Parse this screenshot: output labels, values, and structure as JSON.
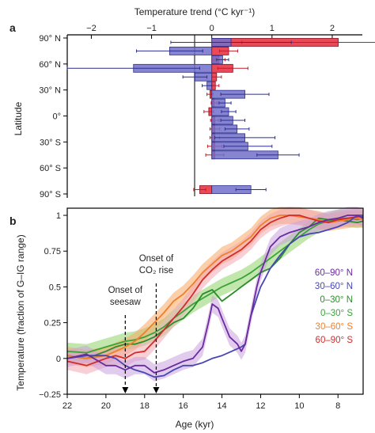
{
  "chart_data": [
    {
      "panel_label": "a",
      "type": "bar",
      "orientation": "horizontal",
      "title": "Temperature trend (°C kyr⁻¹)",
      "xlabel": "Temperature trend (°C kyr⁻¹)",
      "ylabel": "Latitude",
      "xlim": [
        -2.4,
        2.5
      ],
      "xticks": [
        -2,
        -1,
        0,
        1,
        2
      ],
      "xtick_labels": [
        "−2",
        "−1",
        "0",
        "1",
        "2"
      ],
      "ylim": [
        -90,
        90
      ],
      "ytick_labels": [
        "90° N",
        "60° N",
        "30° N",
        "0°",
        "30° S",
        "60° S",
        "90° S"
      ],
      "series": [
        {
          "color": "#e8394a",
          "rows": [
            {
              "lat": 85,
              "value": 2.1,
              "err": 1.6
            },
            {
              "lat": 75,
              "value": 0.28,
              "err": 0.15
            },
            {
              "lat": 65,
              "value": 0.12,
              "err": 0.1
            },
            {
              "lat": 55,
              "value": 0.35,
              "err": 0.25
            },
            {
              "lat": 45,
              "value": 0.08,
              "err": 0.08
            },
            {
              "lat": 35,
              "value": 0.06,
              "err": 0.06
            },
            {
              "lat": 25,
              "value": -0.03,
              "err": 0.05
            },
            {
              "lat": 15,
              "value": 0.04,
              "err": 0.05
            },
            {
              "lat": 5,
              "value": -0.05,
              "err": 0.08
            },
            {
              "lat": -5,
              "value": 0.05,
              "err": 0.07
            },
            {
              "lat": -15,
              "value": 0.05,
              "err": 0.08
            },
            {
              "lat": -25,
              "value": 0.05,
              "err": 0.08
            },
            {
              "lat": -35,
              "value": 0.05,
              "err": 0.12
            },
            {
              "lat": -45,
              "value": 0.05,
              "err": 0.15
            },
            {
              "lat": -85,
              "value": -0.2,
              "err": 0.1
            }
          ]
        },
        {
          "color": "#7270c9",
          "rows": [
            {
              "lat": 85,
              "value": 0.32,
              "err": 1.0
            },
            {
              "lat": 75,
              "value": -0.7,
              "err": 0.55
            },
            {
              "lat": 65,
              "value": 0.18,
              "err": 0.1
            },
            {
              "lat": 55,
              "value": -1.3,
              "err": 1.1
            },
            {
              "lat": 45,
              "value": -0.28,
              "err": 0.2
            },
            {
              "lat": 35,
              "value": -0.08,
              "err": 0.08
            },
            {
              "lat": 25,
              "value": 0.55,
              "err": 0.4
            },
            {
              "lat": 15,
              "value": 0.22,
              "err": 0.1
            },
            {
              "lat": 5,
              "value": 0.28,
              "err": 0.12
            },
            {
              "lat": -5,
              "value": 0.35,
              "err": 0.2
            },
            {
              "lat": -15,
              "value": 0.42,
              "err": 0.2
            },
            {
              "lat": -25,
              "value": 0.55,
              "err": 0.5
            },
            {
              "lat": -35,
              "value": 0.6,
              "err": 0.4
            },
            {
              "lat": -45,
              "value": 1.1,
              "err": 0.35
            },
            {
              "lat": -85,
              "value": 0.65,
              "err": 0.25
            }
          ]
        }
      ]
    },
    {
      "panel_label": "b",
      "type": "line",
      "xlabel": "Age (kyr)",
      "ylabel": "Temperature (fraction of G–IG range)",
      "xlim": [
        22,
        6.7
      ],
      "xticks": [
        22,
        20,
        18,
        16,
        14,
        12,
        10,
        8
      ],
      "xtick_labels": [
        "22",
        "20",
        "18",
        "16",
        "14",
        "12",
        "10",
        "8"
      ],
      "ylim": [
        -0.25,
        1.05
      ],
      "yticks": [
        -0.25,
        0,
        0.25,
        0.5,
        0.75,
        1
      ],
      "ytick_labels": [
        "−0.25",
        "0",
        "0.25",
        "0.5",
        "0.75",
        "1"
      ],
      "annotations": [
        {
          "text_lines": [
            "Onset of",
            "seesaw"
          ],
          "age": 19.0
        },
        {
          "text_lines": [
            "Onset of",
            "CO₂ rise"
          ],
          "age": 17.4
        }
      ],
      "series": [
        {
          "name": "0–30° S",
          "color": "#3aa23a",
          "band": "#8fd36a",
          "x": [
            22,
            21,
            20,
            19,
            18.5,
            18,
            17.5,
            17,
            16.5,
            16,
            15.5,
            15,
            14.5,
            14,
            13.5,
            13,
            12.5,
            12,
            11.5,
            11,
            10.5,
            10,
            9.5,
            9,
            8.5,
            8,
            7.5,
            7,
            6.7
          ],
          "y": [
            0.05,
            0.04,
            0.08,
            0.12,
            0.13,
            0.15,
            0.18,
            0.22,
            0.28,
            0.33,
            0.38,
            0.42,
            0.46,
            0.5,
            0.53,
            0.56,
            0.6,
            0.65,
            0.7,
            0.75,
            0.8,
            0.85,
            0.9,
            0.94,
            0.96,
            0.98,
            0.98,
            0.97,
            0.98
          ]
        },
        {
          "name": "0–30° N",
          "color": "#2e8b2e",
          "band": null,
          "x": [
            22,
            21,
            20,
            19.5,
            19,
            18.5,
            18,
            17.5,
            17,
            16.5,
            16,
            15.5,
            15,
            14.5,
            14,
            13.5,
            13,
            12.5,
            12,
            11.5,
            11,
            10.5,
            10,
            9.5,
            9,
            8.5,
            8,
            7.5,
            7,
            6.7
          ],
          "y": [
            0.02,
            0.0,
            0.05,
            0.08,
            0.1,
            0.1,
            0.12,
            0.15,
            0.2,
            0.25,
            0.28,
            0.35,
            0.45,
            0.48,
            0.4,
            0.45,
            0.5,
            0.55,
            0.6,
            0.63,
            0.7,
            0.8,
            0.88,
            0.92,
            0.98,
            0.97,
            0.97,
            0.96,
            0.95,
            0.96
          ]
        },
        {
          "name": "30–60° S",
          "color": "#f07f2a",
          "band": "#f6a864",
          "x": [
            22,
            21,
            20,
            19.5,
            19,
            18.5,
            18,
            17.5,
            17,
            16.5,
            16,
            15.5,
            15,
            14.5,
            14,
            13.5,
            13,
            12.5,
            12,
            11.5,
            11,
            10.5,
            10,
            9.5,
            9,
            8.5,
            8,
            7.5,
            7,
            6.7
          ],
          "y": [
            0.02,
            0.0,
            0.02,
            0.05,
            0.08,
            0.12,
            0.18,
            0.25,
            0.32,
            0.4,
            0.45,
            0.52,
            0.6,
            0.66,
            0.72,
            0.75,
            0.8,
            0.85,
            0.93,
            0.98,
            1.0,
            1.0,
            0.99,
            0.98,
            0.97,
            0.95,
            0.96,
            0.97,
            0.98,
            0.97
          ]
        },
        {
          "name": "60–90° S",
          "color": "#d42a2a",
          "band": "#f2a7b3",
          "x": [
            22,
            21,
            20,
            19.5,
            19,
            18.5,
            18,
            17.5,
            17,
            16.5,
            16,
            15.5,
            15,
            14.5,
            14,
            13.5,
            13,
            12.5,
            12,
            11.5,
            11,
            10.5,
            10,
            9.5,
            9,
            8.5,
            8,
            7.5,
            7,
            6.7
          ],
          "y": [
            -0.02,
            -0.05,
            0.0,
            0.02,
            0.0,
            0.04,
            0.05,
            0.12,
            0.2,
            0.28,
            0.36,
            0.45,
            0.55,
            0.62,
            0.68,
            0.72,
            0.76,
            0.82,
            0.9,
            0.95,
            0.98,
            1.0,
            1.0,
            0.98,
            0.96,
            0.95,
            0.97,
            0.98,
            0.99,
            0.99
          ]
        },
        {
          "name": "30–60° N",
          "color": "#4646b4",
          "band": null,
          "x": [
            22,
            21,
            20,
            19.5,
            19,
            18.5,
            18,
            17.5,
            17,
            16.5,
            16,
            15.5,
            15,
            14.5,
            14,
            13.5,
            13,
            12.8,
            12.5,
            12,
            11.8,
            11.5,
            11,
            10.5,
            10,
            9.5,
            9,
            8.5,
            8,
            7.5,
            7,
            6.7
          ],
          "y": [
            0.0,
            0.02,
            0.02,
            0.0,
            -0.05,
            -0.08,
            -0.1,
            -0.13,
            -0.12,
            -0.08,
            -0.05,
            -0.05,
            -0.03,
            0.0,
            0.02,
            0.05,
            0.08,
            0.1,
            0.3,
            0.5,
            0.55,
            0.63,
            0.72,
            0.8,
            0.85,
            0.87,
            0.88,
            0.9,
            0.92,
            0.95,
            1.0,
            1.0
          ]
        },
        {
          "name": "60–90° N",
          "color": "#6a2aa0",
          "band": "#cba3df",
          "x": [
            22,
            21,
            20,
            19.5,
            19,
            18.5,
            18,
            17.5,
            17,
            16.5,
            16,
            15.5,
            15,
            14.7,
            14.5,
            14.2,
            14,
            13.6,
            13.2,
            13,
            12.8,
            12.5,
            12.2,
            12,
            11.5,
            11,
            10.5,
            10,
            9.5,
            9,
            8.5,
            8,
            7.5,
            7,
            6.7
          ],
          "y": [
            0.0,
            0.03,
            -0.05,
            -0.05,
            -0.08,
            -0.05,
            -0.05,
            -0.1,
            -0.08,
            -0.05,
            -0.02,
            0.0,
            0.08,
            0.25,
            0.38,
            0.35,
            0.28,
            0.15,
            0.1,
            0.05,
            0.1,
            0.3,
            0.5,
            0.6,
            0.78,
            0.85,
            0.88,
            0.9,
            0.92,
            0.95,
            0.97,
            0.98,
            1.0,
            1.0,
            0.98
          ]
        }
      ],
      "legend": {
        "placement": "right",
        "entries": [
          {
            "label": "60–90° N",
            "color": "#6a2aa0"
          },
          {
            "label": "30–60° N",
            "color": "#4646b4"
          },
          {
            "label": "0–30° N",
            "color": "#2e8b2e"
          },
          {
            "label": "0–30° S",
            "color": "#3aa23a"
          },
          {
            "label": "30–60° S",
            "color": "#f07f2a"
          },
          {
            "label": "60–90° S",
            "color": "#d42a2a"
          }
        ]
      }
    }
  ]
}
